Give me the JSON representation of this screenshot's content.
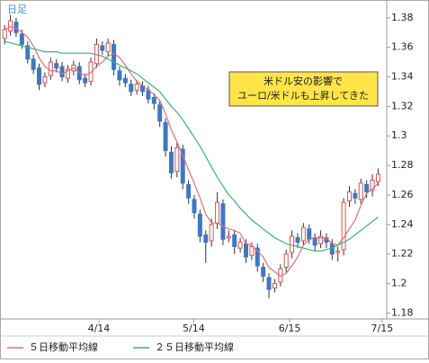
{
  "chart_data": {
    "type": "candlestick",
    "label": "日足",
    "annotation": [
      "米ドル安の影響で",
      "ユーロ/米ドルも上昇してきた"
    ],
    "up_color": "#d9534f",
    "down_color": "#3f78c0",
    "wick_color": "#333333",
    "ohlc": {
      "open": [
        1.366,
        1.371,
        1.377,
        1.369,
        1.361,
        1.352,
        1.346,
        1.336,
        1.341,
        1.349,
        1.347,
        1.339,
        1.344,
        1.347,
        1.339,
        1.337,
        1.349,
        1.361,
        1.357,
        1.362,
        1.344,
        1.339,
        1.335,
        1.331,
        1.334,
        1.331,
        1.326,
        1.321,
        1.309,
        1.289,
        1.276,
        1.291,
        1.267,
        1.257,
        1.247,
        1.233,
        1.229,
        1.241,
        1.254,
        1.231,
        1.233,
        1.224,
        1.227,
        1.219,
        1.224,
        1.211,
        1.204,
        1.197,
        1.201,
        1.211,
        1.221,
        1.231,
        1.229,
        1.237,
        1.231,
        1.227,
        1.231,
        1.227,
        1.221,
        1.223,
        1.256,
        1.261,
        1.257,
        1.267,
        1.263,
        1.269
      ],
      "high": [
        1.375,
        1.382,
        1.38,
        1.372,
        1.364,
        1.355,
        1.349,
        1.343,
        1.353,
        1.352,
        1.35,
        1.348,
        1.351,
        1.35,
        1.342,
        1.353,
        1.366,
        1.364,
        1.366,
        1.365,
        1.347,
        1.342,
        1.338,
        1.338,
        1.337,
        1.334,
        1.329,
        1.324,
        1.312,
        1.293,
        1.296,
        1.294,
        1.27,
        1.26,
        1.25,
        1.236,
        1.244,
        1.262,
        1.257,
        1.236,
        1.236,
        1.231,
        1.23,
        1.228,
        1.227,
        1.214,
        1.207,
        1.203,
        1.213,
        1.223,
        1.236,
        1.234,
        1.241,
        1.24,
        1.234,
        1.236,
        1.234,
        1.23,
        1.225,
        1.258,
        1.266,
        1.264,
        1.271,
        1.27,
        1.274,
        1.278
      ],
      "low": [
        1.362,
        1.368,
        1.367,
        1.359,
        1.349,
        1.342,
        1.331,
        1.333,
        1.338,
        1.343,
        1.337,
        1.336,
        1.341,
        1.335,
        1.333,
        1.334,
        1.346,
        1.355,
        1.354,
        1.341,
        1.334,
        1.333,
        1.327,
        1.328,
        1.327,
        1.322,
        1.318,
        1.306,
        1.286,
        1.271,
        1.272,
        1.264,
        1.254,
        1.244,
        1.228,
        1.214,
        1.225,
        1.237,
        1.226,
        1.228,
        1.22,
        1.221,
        1.214,
        1.216,
        1.208,
        1.201,
        1.19,
        1.194,
        1.198,
        1.207,
        1.217,
        1.224,
        1.226,
        1.227,
        1.222,
        1.224,
        1.224,
        1.216,
        1.215,
        1.219,
        1.252,
        1.254,
        1.254,
        1.258,
        1.259,
        1.266
      ],
      "close": [
        1.372,
        1.378,
        1.37,
        1.362,
        1.352,
        1.345,
        1.335,
        1.34,
        1.35,
        1.346,
        1.34,
        1.345,
        1.348,
        1.338,
        1.336,
        1.35,
        1.362,
        1.358,
        1.363,
        1.345,
        1.338,
        1.336,
        1.33,
        1.335,
        1.33,
        1.325,
        1.322,
        1.31,
        1.29,
        1.275,
        1.292,
        1.268,
        1.258,
        1.248,
        1.232,
        1.228,
        1.24,
        1.255,
        1.23,
        1.232,
        1.225,
        1.228,
        1.218,
        1.225,
        1.212,
        1.205,
        1.196,
        1.2,
        1.21,
        1.22,
        1.232,
        1.228,
        1.238,
        1.23,
        1.226,
        1.232,
        1.228,
        1.22,
        1.222,
        1.255,
        1.262,
        1.258,
        1.268,
        1.262,
        1.27,
        1.274
      ]
    },
    "series": [
      {
        "name": "５日移動平均線",
        "color": "#d9707f",
        "values": [
          1.372,
          1.374,
          1.373,
          1.37,
          1.367,
          1.361,
          1.353,
          1.347,
          1.344,
          1.344,
          1.342,
          1.344,
          1.346,
          1.343,
          1.341,
          1.343,
          1.347,
          1.35,
          1.354,
          1.356,
          1.353,
          1.348,
          1.342,
          1.337,
          1.334,
          1.331,
          1.328,
          1.324,
          1.315,
          1.304,
          1.296,
          1.287,
          1.277,
          1.268,
          1.258,
          1.247,
          1.241,
          1.241,
          1.239,
          1.237,
          1.236,
          1.234,
          1.227,
          1.226,
          1.222,
          1.218,
          1.211,
          1.208,
          1.205,
          1.207,
          1.212,
          1.218,
          1.226,
          1.23,
          1.231,
          1.231,
          1.231,
          1.227,
          1.226,
          1.231,
          1.237,
          1.243,
          1.253,
          1.261,
          1.264,
          1.268
        ]
      },
      {
        "name": "２５日移動平均線",
        "color": "#3fae7a",
        "values": [
          1.364,
          1.363,
          1.362,
          1.361,
          1.36,
          1.359,
          1.358,
          1.357,
          1.357,
          1.357,
          1.356,
          1.356,
          1.356,
          1.356,
          1.356,
          1.356,
          1.355,
          1.354,
          1.352,
          1.35,
          1.348,
          1.346,
          1.344,
          1.342,
          1.339,
          1.336,
          1.333,
          1.33,
          1.325,
          1.32,
          1.316,
          1.311,
          1.305,
          1.299,
          1.293,
          1.286,
          1.279,
          1.272,
          1.266,
          1.26,
          1.256,
          1.251,
          1.247,
          1.243,
          1.24,
          1.237,
          1.234,
          1.231,
          1.229,
          1.227,
          1.226,
          1.225,
          1.224,
          1.223,
          1.222,
          1.222,
          1.223,
          1.224,
          1.226,
          1.228,
          1.23,
          1.233,
          1.236,
          1.239,
          1.242,
          1.245
        ]
      }
    ],
    "xlim": [
      -0.5,
      66.5
    ],
    "xticks": [
      {
        "value": 16.4,
        "label": "4/14"
      },
      {
        "value": 32.9,
        "label": "5/14"
      },
      {
        "value": 49.6,
        "label": "6/15"
      },
      {
        "value": 65.7,
        "label": "7/15"
      }
    ],
    "ylim": [
      1.176,
      1.389
    ],
    "yticks": [
      1.38,
      1.36,
      1.34,
      1.32,
      1.3,
      1.28,
      1.26,
      1.24,
      1.22,
      1.2,
      1.18
    ],
    "grid": false
  }
}
